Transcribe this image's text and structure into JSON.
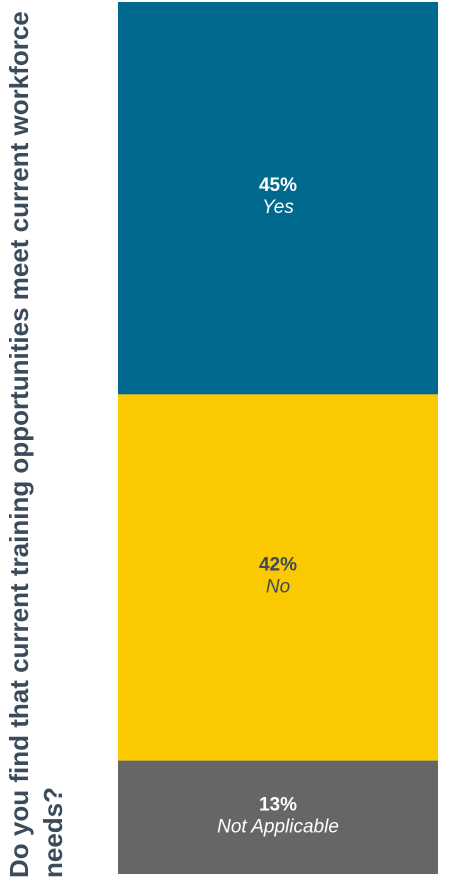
{
  "chart_data": {
    "type": "stacked-bar",
    "title": "Do you find that current training opportunities meet current workforce needs?",
    "categories": [
      null
    ],
    "series": [
      {
        "name": "Yes",
        "color": "#006a8e",
        "values": [
          45
        ],
        "value_labels": [
          "45%"
        ]
      },
      {
        "name": "No",
        "color": "#fbc900",
        "values": [
          42
        ],
        "value_labels": [
          "42%"
        ]
      },
      {
        "name": "Not Applicable",
        "color": "#666666",
        "values": [
          13
        ],
        "value_labels": [
          "13%"
        ]
      }
    ],
    "ylim": [
      0,
      100
    ]
  }
}
